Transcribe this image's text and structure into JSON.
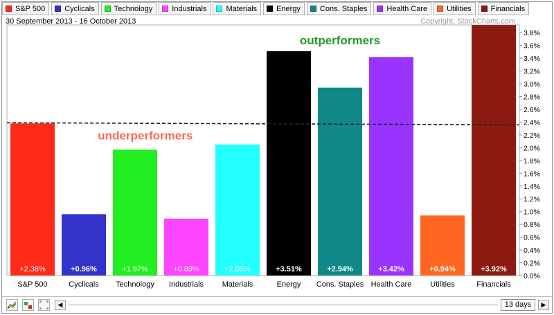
{
  "chart_data": {
    "type": "bar",
    "date_range": "30 September 2013 - 16 October 2013",
    "copyright": "Copyright, StockCharts.com",
    "categories": [
      "S&P 500",
      "Cyclicals",
      "Technology",
      "Industrials",
      "Materials",
      "Energy",
      "Cons. Staples",
      "Health Care",
      "Utilities",
      "Financials"
    ],
    "values": [
      2.38,
      0.96,
      1.97,
      0.89,
      2.05,
      3.51,
      2.94,
      3.42,
      0.94,
      3.92
    ],
    "value_labels": [
      "+2.38%",
      "+0.96%",
      "+1.97%",
      "+0.89%",
      "+2.05%",
      "+3.51%",
      "+2.94%",
      "+3.42%",
      "+0.94%",
      "+3.92%"
    ],
    "colors": [
      "#ff2a1a",
      "#3333cc",
      "#22ee22",
      "#ff44ff",
      "#22ffff",
      "#000000",
      "#118888",
      "#9933ff",
      "#ff6622",
      "#8b1a10"
    ],
    "ylim": [
      0,
      3.9
    ],
    "yticks": [
      "0.0%",
      "0.2%",
      "0.4%",
      "0.6%",
      "0.8%",
      "1.0%",
      "1.2%",
      "1.4%",
      "1.6%",
      "1.8%",
      "2.0%",
      "2.2%",
      "2.4%",
      "2.6%",
      "2.8%",
      "3.0%",
      "3.2%",
      "3.4%",
      "3.6%",
      "3.8%"
    ],
    "ytick_values": [
      0,
      0.2,
      0.4,
      0.6,
      0.8,
      1.0,
      1.2,
      1.4,
      1.6,
      1.8,
      2.0,
      2.2,
      2.4,
      2.6,
      2.8,
      3.0,
      3.2,
      3.4,
      3.6,
      3.8
    ],
    "reference_line": 2.38,
    "annotations": [
      {
        "text": "outperformers",
        "color": "#229922",
        "x_category": 6,
        "y": 3.62
      },
      {
        "text": "underperformers",
        "color": "#ff6655",
        "x_category": 2.2,
        "y": 2.13
      }
    ],
    "legend_placement": "top",
    "grid": false
  },
  "toolbar": {
    "period_label": "13 days"
  }
}
